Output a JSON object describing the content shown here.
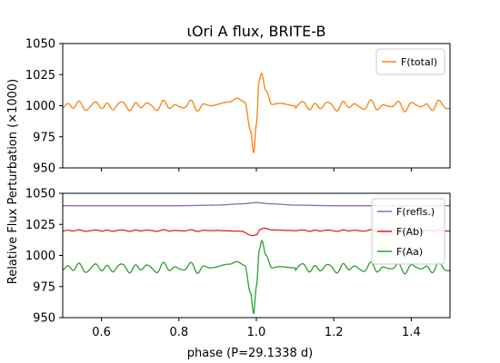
{
  "chart_data": [
    {
      "type": "line",
      "title": "ιOri A flux, BRITE-B",
      "xlim": [
        0.5,
        1.5
      ],
      "ylim": [
        950,
        1050
      ],
      "yticks": [
        950,
        975,
        1000,
        1025,
        1050
      ],
      "xticks": [
        0.6,
        0.8,
        1.0,
        1.2,
        1.4
      ],
      "show_xtick_labels": false,
      "grid": false,
      "legend_position": "top-right",
      "series": [
        {
          "name": "F(total)",
          "color": "#ff7f0e",
          "baseline": 1000,
          "osc_amp": 2.5,
          "peri_points": [
            [
              0.88,
              1000
            ],
            [
              0.93,
              1003
            ],
            [
              0.95,
              1006
            ],
            [
              0.97,
              1003
            ],
            [
              0.985,
              980
            ],
            [
              0.993,
              962
            ],
            [
              1.0,
              985
            ],
            [
              1.007,
              1020
            ],
            [
              1.013,
              1026
            ],
            [
              1.025,
              1012
            ],
            [
              1.04,
              1001
            ],
            [
              1.06,
              1002
            ],
            [
              1.1,
              1000
            ]
          ]
        }
      ]
    },
    {
      "type": "line",
      "xlabel": "phase (P=29.1338 d)",
      "xlim": [
        0.5,
        1.5
      ],
      "ylim": [
        950,
        1050
      ],
      "yticks": [
        950,
        975,
        1000,
        1025,
        1050
      ],
      "xticks": [
        0.6,
        0.8,
        1.0,
        1.2,
        1.4
      ],
      "grid": false,
      "legend_position": "top-right",
      "series": [
        {
          "name": "F(refls.)",
          "color": "#9467bd",
          "baseline": 1040,
          "osc_amp": 0,
          "peri_points": [
            [
              0.8,
              1040
            ],
            [
              0.9,
              1040.5
            ],
            [
              0.96,
              1041.5
            ],
            [
              1.0,
              1042.5
            ],
            [
              1.04,
              1041.5
            ],
            [
              1.1,
              1040.5
            ],
            [
              1.2,
              1040
            ]
          ]
        },
        {
          "name": "F(Ab)",
          "color": "#d62728",
          "baseline": 1020,
          "osc_amp": 0.4,
          "peri_points": [
            [
              0.9,
              1020
            ],
            [
              0.96,
              1019.5
            ],
            [
              0.99,
              1016
            ],
            [
              1.0,
              1016.5
            ],
            [
              1.01,
              1021
            ],
            [
              1.02,
              1022
            ],
            [
              1.04,
              1020.5
            ],
            [
              1.1,
              1020
            ]
          ]
        },
        {
          "name": "F(Aa)",
          "color": "#2ca02c",
          "baseline": 990,
          "osc_amp": 2.5,
          "peri_points": [
            [
              0.88,
              990
            ],
            [
              0.93,
              993
            ],
            [
              0.95,
              995
            ],
            [
              0.97,
              992
            ],
            [
              0.985,
              970
            ],
            [
              0.993,
              953
            ],
            [
              1.0,
              975
            ],
            [
              1.008,
              1005
            ],
            [
              1.014,
              1012
            ],
            [
              1.025,
              1000
            ],
            [
              1.04,
              990
            ],
            [
              1.06,
              991
            ],
            [
              1.1,
              990
            ]
          ]
        }
      ]
    }
  ],
  "shared_ylabel": "Relative Flux Perturbation (×1000)"
}
